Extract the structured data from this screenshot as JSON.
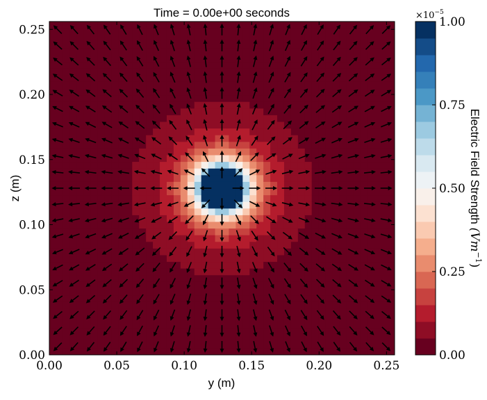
{
  "chart_data": {
    "type": "heatmap",
    "title": "Time = 0.00e+00 seconds",
    "xlabel": "y (m)",
    "ylabel": "z (m)",
    "xlim": [
      0,
      0.256
    ],
    "ylim": [
      0,
      0.256
    ],
    "xticks": [
      "0.00",
      "0.05",
      "0.10",
      "0.15",
      "0.20",
      "0.25"
    ],
    "xtick_values": [
      0,
      0.05,
      0.1,
      0.15,
      0.2,
      0.25
    ],
    "yticks": [
      "0.00",
      "0.05",
      "0.10",
      "0.15",
      "0.20",
      "0.25"
    ],
    "ytick_values": [
      0,
      0.05,
      0.1,
      0.15,
      0.2,
      0.25
    ],
    "field": {
      "description_of_values": "point-source electric field magnitude, saturating at colorbar max",
      "source_center": [
        0.128,
        0.128
      ],
      "saturation_radius": 0.015,
      "grid_cells": 50
    },
    "quiver": {
      "grid": 21,
      "direction": "radially outward from source"
    },
    "colorbar": {
      "label": "Electric Field Strength (V m⁻¹)",
      "label_main": "Electric Field Strength ",
      "label_units": "(Vm",
      "label_exp": "−1",
      "label_close": ")",
      "range": [
        0,
        1.0
      ],
      "scale_label": "×10",
      "scale_exp": "−5",
      "ticks": [
        "0.00",
        "0.25",
        "0.50",
        "0.75",
        "1.00"
      ],
      "tick_values": [
        0,
        0.25,
        0.5,
        0.75,
        1.0
      ],
      "levels": 20,
      "colormap": [
        "#67001f",
        "#b2182b",
        "#d6604d",
        "#f4a582",
        "#fddbc7",
        "#f7f7f7",
        "#d1e5f0",
        "#92c5de",
        "#4393c3",
        "#2166ac",
        "#053061"
      ]
    }
  }
}
